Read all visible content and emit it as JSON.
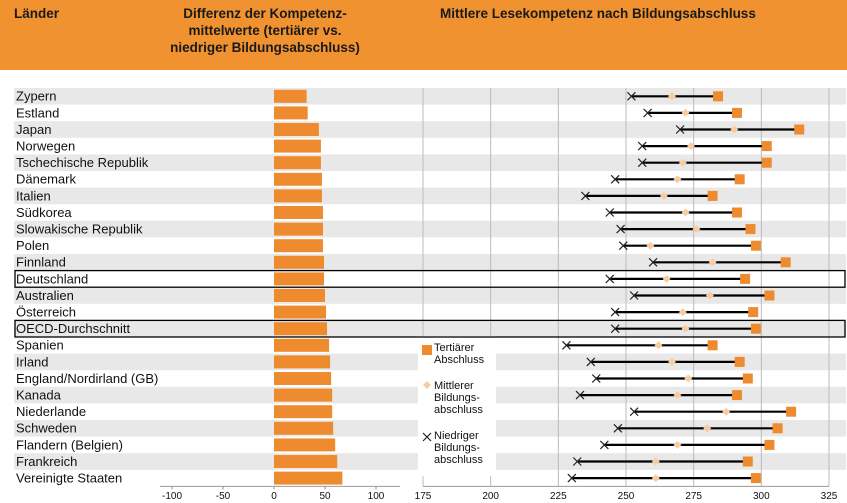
{
  "header": {
    "label": "Länder"
  },
  "chart_data": [
    {
      "type": "bar",
      "orientation": "horizontal",
      "title": "Differenz der Kompetenz-\nmittelwerte (tertiärer vs.\nniedriger Bildungsabschluss)",
      "categories": [
        "Zypern",
        "Estland",
        "Japan",
        "Norwegen",
        "Tschechische Republik",
        "Dänemark",
        "Italien",
        "Südkorea",
        "Slowakische Republik",
        "Polen",
        "Finnland",
        "Deutschland",
        "Australien",
        "Österreich",
        "OECD-Durchschnitt",
        "Spanien",
        "Irland",
        "England/Nordirland (GB)",
        "Kanada",
        "Niederlande",
        "Schweden",
        "Flandern (Belgien)",
        "Frankreich",
        "Vereinigte Staaten"
      ],
      "values": [
        32,
        33,
        44,
        46,
        46,
        47,
        47,
        48,
        48,
        48,
        49,
        49,
        50,
        51,
        52,
        54,
        55,
        56,
        57,
        57,
        58,
        60,
        62,
        67
      ],
      "color": "#ee8b2e",
      "xlim": [
        -100,
        100
      ],
      "xticks": [
        -100,
        -50,
        0,
        50,
        100
      ],
      "highlighted": [
        11,
        14
      ]
    },
    {
      "type": "dumbbell",
      "title": "Mittlere Lesekompetenz nach Bildungsabschluss",
      "series": [
        {
          "name": "Tertiärer\nAbschluss",
          "marker": "square",
          "color": "#ee8b2e",
          "values": [
            284,
            291,
            314,
            302,
            302,
            292,
            282,
            291,
            296,
            298,
            309,
            294,
            303,
            297,
            298,
            282,
            292,
            295,
            291,
            311,
            306,
            303,
            295,
            298
          ]
        },
        {
          "name": "Mittlerer\nBildungs-\nabschluss",
          "marker": "diamond",
          "color": "#f8cc9e",
          "values": [
            267,
            272,
            290,
            274,
            271,
            269,
            264,
            272,
            276,
            259,
            282,
            265,
            281,
            271,
            272,
            262,
            267,
            273,
            269,
            287,
            280,
            269,
            261,
            261
          ]
        },
        {
          "name": "Niedriger\nBildungs-\nabschluss",
          "marker": "cross",
          "color": "#222222",
          "values": [
            252,
            258,
            270,
            256,
            256,
            246,
            235,
            244,
            248,
            249,
            260,
            244,
            253,
            246,
            246,
            228,
            237,
            239,
            233,
            253,
            247,
            242,
            232,
            230
          ]
        }
      ],
      "xlim": [
        175,
        325
      ],
      "xticks": [
        175,
        200,
        225,
        250,
        275,
        300,
        325
      ],
      "grid": true
    }
  ]
}
